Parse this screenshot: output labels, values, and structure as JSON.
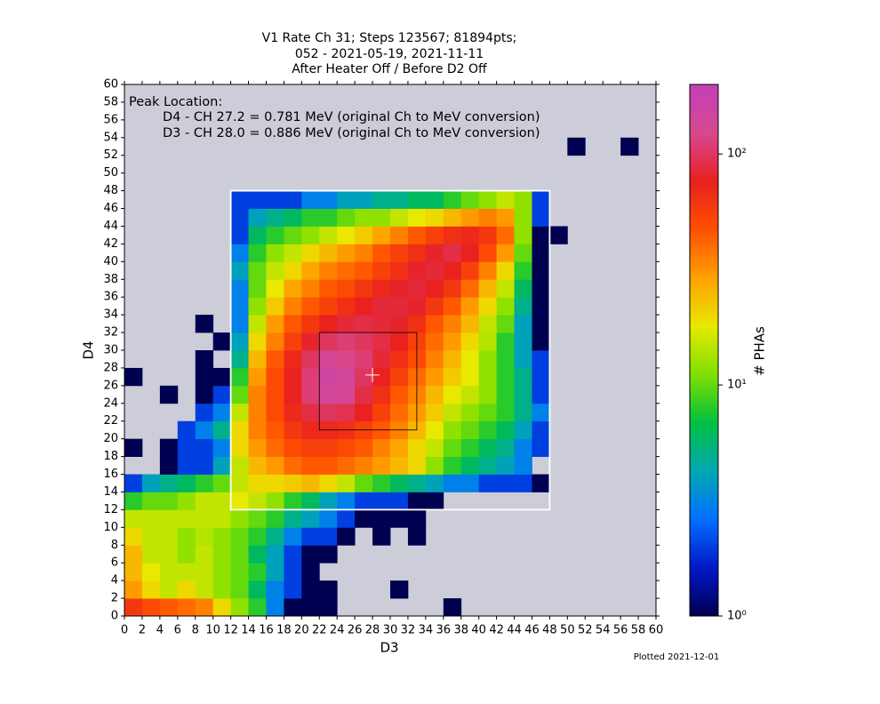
{
  "chart_data": {
    "type": "heatmap",
    "title": [
      "V1 Rate Ch 31; Steps 123567; 81894pts;",
      "052 - 2021-05-19, 2021-11-11",
      "After Heater Off / Before D2 Off"
    ],
    "x_label": "D3",
    "y_label": "D4",
    "colorbar_label": "# PHAs",
    "footnote": "Plotted 2021-12-01",
    "annotation": [
      "Peak Location:",
      "D4 - CH 27.2 = 0.781 MeV (original Ch to MeV conversion)",
      "D3 - CH 28.0 = 0.886 MeV (original Ch to MeV conversion)"
    ],
    "xlim": [
      0,
      60
    ],
    "ylim": [
      0,
      60
    ],
    "xticks": [
      0,
      2,
      4,
      6,
      8,
      10,
      12,
      14,
      16,
      18,
      20,
      22,
      24,
      26,
      28,
      30,
      32,
      34,
      36,
      38,
      40,
      42,
      44,
      46,
      48,
      50,
      52,
      54,
      56,
      58,
      60
    ],
    "yticks": [
      0,
      2,
      4,
      6,
      8,
      10,
      12,
      14,
      16,
      18,
      20,
      22,
      24,
      26,
      28,
      30,
      32,
      34,
      36,
      38,
      40,
      42,
      44,
      46,
      48,
      50,
      52,
      54,
      56,
      58,
      60
    ],
    "xbins": [
      0,
      2,
      4,
      6,
      8,
      10,
      12,
      14,
      16,
      18,
      20,
      22,
      24,
      26,
      28,
      30,
      32,
      34,
      36,
      38,
      40,
      42,
      44,
      46,
      48,
      50,
      52,
      54,
      56,
      58,
      60
    ],
    "ybins": [
      0,
      2,
      4,
      6,
      8,
      10,
      12,
      14,
      16,
      18,
      20,
      22,
      24,
      26,
      28,
      30,
      32,
      34,
      36,
      38,
      40,
      42,
      44,
      46,
      48,
      50,
      52,
      54,
      56,
      58,
      60
    ],
    "zlim": [
      1,
      200
    ],
    "zscale": "log",
    "zticks": [
      {
        "value": 1,
        "label": "10⁰"
      },
      {
        "value": 10,
        "label": "10¹"
      },
      {
        "value": 100,
        "label": "10²"
      }
    ],
    "colormap": [
      "#000050",
      "#0018c8",
      "#0070ff",
      "#00a8b0",
      "#00c040",
      "#80e000",
      "#e8e800",
      "#ffa000",
      "#ff5000",
      "#e82020",
      "#d84890",
      "#c040b8"
    ],
    "background": "#cdcdd9",
    "boxes": [
      {
        "x": [
          12,
          48
        ],
        "y": [
          12,
          48
        ],
        "color": "#ffffff"
      },
      {
        "x": [
          22,
          33
        ],
        "y": [
          21,
          32
        ],
        "color": "#000000"
      }
    ],
    "peak": {
      "x": 28.0,
      "y": 27.2,
      "color": "#ffffff"
    },
    "z": [
      [
        60,
        50,
        45,
        40,
        35,
        20,
        12,
        8,
        3,
        1,
        1,
        1,
        null,
        null,
        null,
        null,
        null,
        null,
        1,
        null,
        null,
        null,
        null,
        null,
        null,
        null,
        null,
        null,
        null,
        null
      ],
      [
        30,
        20,
        15,
        20,
        15,
        12,
        10,
        6,
        3,
        2,
        1,
        1,
        null,
        null,
        null,
        1,
        null,
        null,
        null,
        null,
        null,
        null,
        null,
        null,
        null,
        null,
        null,
        null,
        null,
        null
      ],
      [
        25,
        18,
        15,
        15,
        15,
        12,
        10,
        8,
        4,
        2,
        1,
        null,
        null,
        null,
        null,
        null,
        null,
        null,
        null,
        null,
        null,
        null,
        null,
        null,
        null,
        null,
        null,
        null,
        null,
        null
      ],
      [
        25,
        15,
        15,
        12,
        15,
        12,
        10,
        6,
        4,
        2,
        1,
        1,
        null,
        null,
        null,
        null,
        null,
        null,
        null,
        null,
        null,
        null,
        null,
        null,
        null,
        null,
        null,
        null,
        null,
        null
      ],
      [
        20,
        15,
        15,
        12,
        14,
        12,
        10,
        8,
        5,
        3,
        2,
        2,
        1,
        null,
        1,
        null,
        1,
        null,
        null,
        null,
        null,
        null,
        null,
        null,
        null,
        null,
        null,
        null,
        null,
        null
      ],
      [
        15,
        15,
        15,
        15,
        15,
        15,
        12,
        10,
        8,
        5,
        4,
        3,
        2,
        1,
        1,
        1,
        1,
        null,
        null,
        null,
        null,
        null,
        null,
        null,
        null,
        null,
        null,
        null,
        null,
        null
      ],
      [
        8,
        10,
        10,
        12,
        15,
        15,
        18,
        15,
        12,
        8,
        6,
        4,
        3,
        2,
        2,
        2,
        1,
        1,
        null,
        null,
        null,
        null,
        null,
        null,
        null,
        null,
        null,
        null,
        null,
        null
      ],
      [
        2,
        4,
        5,
        6,
        8,
        10,
        15,
        20,
        20,
        22,
        25,
        20,
        15,
        10,
        8,
        6,
        5,
        4,
        3,
        3,
        2,
        2,
        2,
        1,
        null,
        null,
        null,
        null,
        null,
        null
      ],
      [
        null,
        null,
        1,
        2,
        2,
        4,
        15,
        25,
        30,
        40,
        45,
        45,
        40,
        35,
        30,
        25,
        20,
        12,
        8,
        6,
        5,
        4,
        3,
        null,
        null,
        null,
        null,
        null,
        null,
        null
      ],
      [
        1,
        null,
        1,
        2,
        2,
        3,
        20,
        30,
        40,
        50,
        55,
        55,
        50,
        45,
        35,
        28,
        20,
        15,
        10,
        8,
        6,
        5,
        3,
        2,
        null,
        null,
        null,
        null,
        null,
        null
      ],
      [
        null,
        null,
        null,
        2,
        3,
        5,
        20,
        35,
        45,
        60,
        70,
        70,
        65,
        55,
        45,
        35,
        25,
        18,
        12,
        10,
        8,
        6,
        4,
        2,
        null,
        null,
        null,
        null,
        null,
        null
      ],
      [
        null,
        null,
        null,
        null,
        2,
        3,
        15,
        35,
        50,
        70,
        90,
        100,
        95,
        75,
        55,
        40,
        30,
        22,
        15,
        12,
        10,
        8,
        5,
        3,
        null,
        null,
        null,
        null,
        null,
        null
      ],
      [
        null,
        null,
        1,
        null,
        1,
        2,
        10,
        35,
        50,
        75,
        110,
        140,
        130,
        90,
        65,
        45,
        35,
        25,
        18,
        15,
        12,
        8,
        5,
        2,
        null,
        null,
        null,
        null,
        null,
        null
      ],
      [
        1,
        null,
        null,
        null,
        1,
        1,
        8,
        30,
        50,
        75,
        110,
        150,
        140,
        100,
        75,
        55,
        40,
        30,
        22,
        18,
        12,
        8,
        5,
        2,
        null,
        null,
        null,
        null,
        null,
        null
      ],
      [
        null,
        null,
        null,
        null,
        1,
        null,
        5,
        25,
        45,
        70,
        100,
        130,
        120,
        110,
        85,
        65,
        50,
        35,
        25,
        18,
        12,
        8,
        4,
        2,
        null,
        null,
        null,
        null,
        null,
        null
      ],
      [
        null,
        null,
        null,
        null,
        null,
        1,
        4,
        20,
        35,
        55,
        80,
        100,
        110,
        100,
        90,
        75,
        55,
        40,
        30,
        20,
        14,
        8,
        4,
        1,
        null,
        null,
        null,
        null,
        null,
        null
      ],
      [
        null,
        null,
        null,
        null,
        1,
        null,
        3,
        15,
        30,
        45,
        60,
        75,
        85,
        90,
        85,
        80,
        65,
        45,
        35,
        25,
        15,
        10,
        4,
        1,
        null,
        null,
        null,
        null,
        null,
        null
      ],
      [
        null,
        null,
        null,
        null,
        null,
        null,
        3,
        12,
        22,
        35,
        45,
        55,
        65,
        75,
        85,
        85,
        80,
        60,
        45,
        30,
        20,
        12,
        5,
        1,
        null,
        null,
        null,
        null,
        null,
        null
      ],
      [
        null,
        null,
        null,
        null,
        null,
        null,
        3,
        10,
        18,
        28,
        35,
        45,
        50,
        60,
        70,
        80,
        85,
        75,
        60,
        40,
        25,
        15,
        6,
        1,
        null,
        null,
        null,
        null,
        null,
        null
      ],
      [
        null,
        null,
        null,
        null,
        null,
        null,
        4,
        10,
        15,
        20,
        28,
        35,
        40,
        45,
        55,
        65,
        80,
        85,
        75,
        55,
        35,
        20,
        8,
        1,
        null,
        null,
        null,
        null,
        null,
        null
      ],
      [
        null,
        null,
        null,
        null,
        null,
        null,
        3,
        8,
        12,
        15,
        20,
        25,
        30,
        35,
        45,
        55,
        65,
        80,
        90,
        75,
        50,
        30,
        10,
        1,
        null,
        null,
        null,
        null,
        null,
        null
      ],
      [
        null,
        null,
        null,
        null,
        null,
        null,
        2,
        6,
        8,
        10,
        12,
        15,
        18,
        22,
        28,
        35,
        45,
        55,
        65,
        70,
        60,
        40,
        12,
        1,
        1,
        null,
        null,
        null,
        null,
        null
      ],
      [
        null,
        null,
        null,
        null,
        null,
        null,
        2,
        4,
        5,
        6,
        8,
        8,
        10,
        12,
        12,
        15,
        18,
        20,
        25,
        30,
        35,
        30,
        12,
        2,
        null,
        null,
        null,
        null,
        null,
        null
      ],
      [
        null,
        null,
        null,
        null,
        null,
        null,
        2,
        2,
        2,
        2,
        3,
        3,
        4,
        4,
        5,
        5,
        6,
        6,
        8,
        10,
        12,
        15,
        12,
        2,
        null,
        null,
        null,
        null,
        null,
        null
      ],
      [
        null,
        null,
        null,
        null,
        null,
        null,
        null,
        null,
        null,
        null,
        null,
        null,
        null,
        null,
        null,
        null,
        null,
        null,
        null,
        null,
        null,
        null,
        null,
        null,
        null,
        null,
        null,
        null,
        null,
        null
      ],
      [
        null,
        null,
        null,
        null,
        null,
        null,
        null,
        null,
        null,
        null,
        null,
        null,
        null,
        null,
        null,
        null,
        null,
        null,
        null,
        null,
        null,
        null,
        null,
        null,
        null,
        null,
        null,
        null,
        null,
        null
      ],
      [
        null,
        null,
        null,
        null,
        null,
        null,
        null,
        null,
        null,
        null,
        null,
        null,
        null,
        null,
        null,
        null,
        null,
        null,
        null,
        null,
        null,
        null,
        null,
        null,
        null,
        1,
        null,
        null,
        1,
        null
      ],
      [
        null,
        null,
        null,
        null,
        null,
        null,
        null,
        null,
        null,
        null,
        null,
        null,
        null,
        null,
        null,
        null,
        null,
        null,
        null,
        null,
        null,
        null,
        null,
        null,
        null,
        null,
        null,
        null,
        null,
        null
      ],
      [
        null,
        null,
        null,
        null,
        null,
        null,
        null,
        null,
        null,
        null,
        null,
        null,
        null,
        null,
        null,
        null,
        null,
        null,
        null,
        null,
        null,
        null,
        null,
        null,
        null,
        null,
        null,
        null,
        null,
        null
      ],
      [
        null,
        null,
        null,
        null,
        null,
        null,
        null,
        null,
        null,
        null,
        null,
        null,
        null,
        null,
        null,
        null,
        null,
        null,
        null,
        null,
        null,
        null,
        null,
        null,
        null,
        null,
        null,
        null,
        null,
        null
      ]
    ]
  }
}
